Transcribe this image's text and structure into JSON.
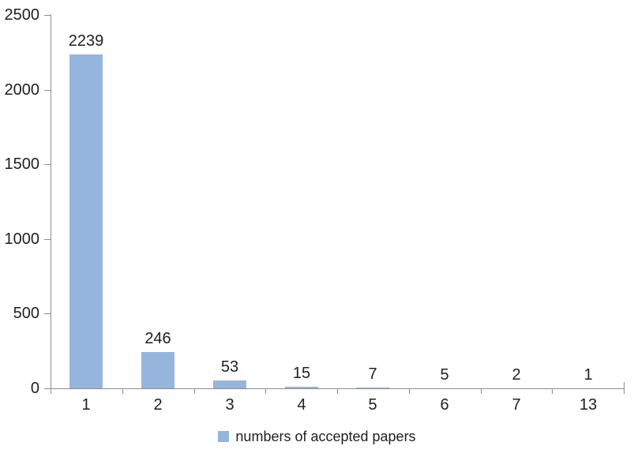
{
  "chart_data": {
    "type": "bar",
    "title": "",
    "legend": "numbers of accepted papers",
    "legend_position": "bottom",
    "categories": [
      "1",
      "2",
      "3",
      "4",
      "5",
      "6",
      "7",
      "13"
    ],
    "values": [
      2239,
      246,
      53,
      15,
      7,
      5,
      2,
      1
    ],
    "xlabel": "",
    "ylabel": "",
    "ylim": [
      0,
      2500
    ],
    "yticks": [
      0,
      500,
      1000,
      1500,
      2000,
      2500
    ],
    "grid": false,
    "bar_color": "#95B5DC",
    "axis_color": "#8E8E8E",
    "label_color": "#1F1F1F",
    "background_color": "#FFFFFF"
  }
}
